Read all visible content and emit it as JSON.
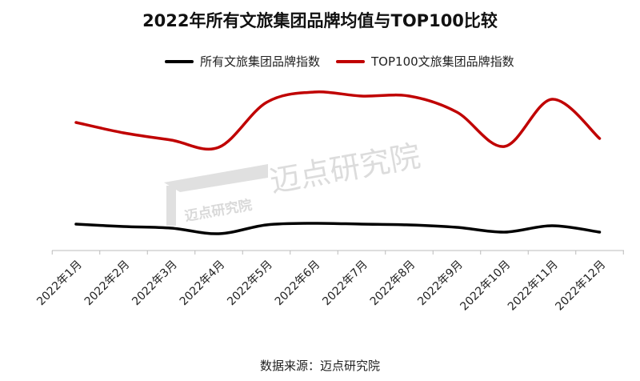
{
  "chart_data": {
    "type": "line",
    "title": "2022年所有文旅集团品牌均值与TOP100比较",
    "categories": [
      "2022年1月",
      "2022年2月",
      "2022年3月",
      "2022年4月",
      "2022年5月",
      "2022年6月",
      "2022年7月",
      "2022年8月",
      "2022年9月",
      "2022年10月",
      "2022年11月",
      "2022年12月"
    ],
    "series": [
      {
        "name": "所有文旅集团品牌指数",
        "color": "#000000",
        "values": [
          33,
          30,
          28,
          21,
          32,
          34,
          33,
          32,
          29,
          23,
          31,
          23
        ]
      },
      {
        "name": "TOP100文旅集团品牌指数",
        "color": "#c00000",
        "values": [
          160,
          147,
          138,
          129,
          185,
          198,
          193,
          193,
          173,
          130,
          189,
          140
        ]
      }
    ],
    "ylim": [
      0,
      200
    ],
    "yaxis_visible": false,
    "grid": false,
    "smooth": true,
    "legend": "top",
    "source": "数据来源：迈点研究院",
    "watermark": "迈点研究院"
  }
}
